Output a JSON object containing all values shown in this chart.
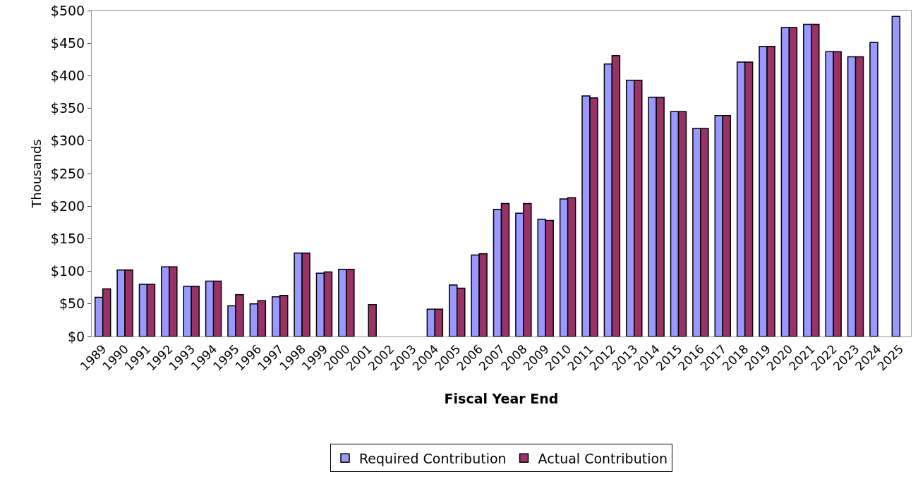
{
  "chart_data": {
    "type": "bar",
    "xlabel": "Fiscal Year End",
    "ylabel": "Thousands",
    "categories": [
      "1989",
      "1990",
      "1991",
      "1992",
      "1993",
      "1994",
      "1995",
      "1996",
      "1997",
      "1998",
      "1999",
      "2000",
      "2001",
      "2002",
      "2003",
      "2004",
      "2005",
      "2006",
      "2007",
      "2008",
      "2009",
      "2010",
      "2011",
      "2012",
      "2013",
      "2014",
      "2015",
      "2016",
      "2017",
      "2018",
      "2019",
      "2020",
      "2021",
      "2022",
      "2023",
      "2024",
      "2025"
    ],
    "series": [
      {
        "name": "Required Contribution",
        "color": "#9999ff",
        "values": [
          60,
          102,
          80,
          107,
          77,
          85,
          47,
          50,
          61,
          128,
          97,
          103,
          0,
          0,
          0,
          42,
          79,
          125,
          195,
          189,
          180,
          211,
          369,
          418,
          393,
          367,
          345,
          319,
          339,
          421,
          445,
          474,
          479,
          437,
          429,
          451,
          491
        ]
      },
      {
        "name": "Actual Contribution",
        "color": "#993366",
        "values": [
          73,
          102,
          80,
          107,
          77,
          85,
          64,
          55,
          63,
          128,
          99,
          103,
          49,
          0,
          0,
          42,
          74,
          127,
          204,
          204,
          178,
          213,
          366,
          431,
          393,
          367,
          345,
          319,
          339,
          421,
          445,
          474,
          479,
          437,
          429,
          null,
          null
        ]
      }
    ],
    "ylim": [
      0,
      500
    ],
    "yticks": [
      {
        "value": 0,
        "label": "$0"
      },
      {
        "value": 50,
        "label": "$50"
      },
      {
        "value": 100,
        "label": "$100"
      },
      {
        "value": 150,
        "label": "$150"
      },
      {
        "value": 200,
        "label": "$200"
      },
      {
        "value": 250,
        "label": "$250"
      },
      {
        "value": 300,
        "label": "$300"
      },
      {
        "value": 350,
        "label": "$350"
      },
      {
        "value": 400,
        "label": "$400"
      },
      {
        "value": 450,
        "label": "$450"
      },
      {
        "value": 500,
        "label": "$500"
      }
    ],
    "grid": false,
    "legend": "bottom"
  }
}
